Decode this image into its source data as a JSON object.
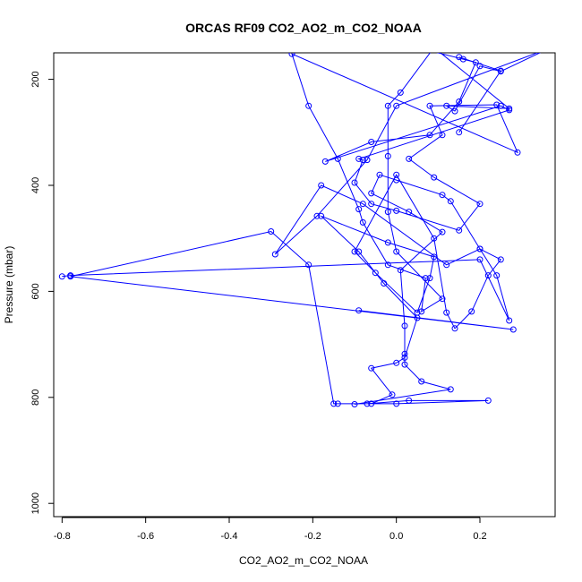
{
  "chart_data": {
    "type": "line",
    "title": "ORCAS RF09 CO2_AO2_m_CO2_NOAA",
    "xlabel": "CO2_AO2_m_CO2_NOAA",
    "ylabel": "Pressure (mbar)",
    "xlim": [
      -0.82,
      0.38
    ],
    "ylim": [
      1025,
      150
    ],
    "y_inverted": true,
    "grid": false,
    "legend": "none",
    "marker": "open-circle",
    "color": "#0000ff",
    "x_ticks": [
      "-0.8",
      "-0.6",
      "-0.4",
      "-0.2",
      "0.0",
      "0.2"
    ],
    "x_tick_values": [
      -0.8,
      -0.6,
      -0.4,
      -0.2,
      0.0,
      0.2
    ],
    "y_ticks": [
      "200",
      "400",
      "600",
      "800",
      "1000"
    ],
    "y_tick_values": [
      200,
      400,
      600,
      800,
      1000
    ],
    "series": [
      {
        "points": [
          [
            0.05,
            140
          ],
          [
            0.16,
            162
          ],
          [
            0.19,
            168
          ],
          [
            0.15,
            242
          ],
          [
            0.08,
            305
          ],
          [
            -0.06,
            318
          ],
          [
            -0.17,
            355
          ],
          [
            0.25,
            250
          ],
          [
            0.27,
            258
          ],
          [
            -0.09,
            350
          ],
          [
            -0.08,
            352
          ],
          [
            -0.1,
            395
          ],
          [
            -0.06,
            435
          ],
          [
            0.0,
            448
          ],
          [
            0.15,
            485
          ],
          [
            0.2,
            435
          ],
          [
            0.09,
            385
          ],
          [
            0.03,
            350
          ],
          [
            0.11,
            305
          ],
          [
            0.08,
            250
          ],
          [
            0.24,
            248
          ],
          [
            0.29,
            338
          ],
          [
            -0.25,
            152
          ],
          [
            -0.21,
            250
          ],
          [
            -0.14,
            350
          ],
          [
            -0.09,
            445
          ],
          [
            -0.08,
            470
          ],
          [
            -0.02,
            550
          ],
          [
            0.07,
            575
          ],
          [
            0.06,
            638
          ],
          [
            0.11,
            614
          ],
          [
            0.0,
            525
          ],
          [
            -0.02,
            450
          ],
          [
            -0.02,
            345
          ],
          [
            -0.02,
            250
          ],
          [
            0.01,
            225
          ],
          [
            0.09,
            140
          ],
          [
            0.27,
            255
          ],
          [
            0.12,
            250
          ],
          [
            0.14,
            260
          ],
          [
            0.2,
            175
          ],
          [
            0.25,
            185
          ],
          [
            0.37,
            140
          ],
          [
            0.0,
            250
          ],
          [
            -0.07,
            352
          ],
          [
            -0.19,
            458
          ],
          [
            -0.29,
            530
          ],
          [
            -0.18,
            400
          ],
          [
            -0.08,
            435
          ],
          [
            0.12,
            550
          ],
          [
            0.2,
            520
          ],
          [
            0.25,
            540
          ],
          [
            0.22,
            570
          ],
          [
            0.18,
            638
          ],
          [
            0.14,
            670
          ],
          [
            0.12,
            640
          ],
          [
            0.09,
            500
          ],
          [
            0.0,
            380
          ],
          [
            -0.1,
            525
          ],
          [
            -0.05,
            565
          ],
          [
            0.05,
            640
          ],
          [
            0.08,
            575
          ],
          [
            0.09,
            535
          ],
          [
            -0.02,
            508
          ],
          [
            -0.18,
            458
          ],
          [
            -0.09,
            525
          ],
          [
            -0.03,
            585
          ],
          [
            0.05,
            650
          ],
          [
            0.02,
            725
          ],
          [
            0.0,
            735
          ],
          [
            -0.06,
            745
          ],
          [
            -0.01,
            795
          ],
          [
            -0.06,
            812
          ],
          [
            0.0,
            812
          ],
          [
            0.22,
            806
          ],
          [
            0.03,
            806
          ],
          [
            -0.07,
            812
          ],
          [
            -0.14,
            812
          ],
          [
            -0.15,
            812
          ],
          [
            -0.21,
            550
          ],
          [
            -0.3,
            487
          ],
          [
            -0.78,
            572
          ],
          [
            0.28,
            672
          ],
          [
            -0.09,
            636
          ]
        ]
      },
      {
        "points": [
          [
            0.15,
            300
          ],
          [
            0.25,
            184
          ],
          [
            0.15,
            158
          ]
        ]
      },
      {
        "points": [
          [
            -0.8,
            572
          ],
          [
            -0.78,
            570
          ],
          [
            0.2,
            540
          ],
          [
            0.27,
            655
          ],
          [
            0.24,
            570
          ],
          [
            0.2,
            520
          ],
          [
            0.13,
            430
          ],
          [
            0.11,
            418
          ],
          [
            0.0,
            390
          ],
          [
            -0.04,
            380
          ],
          [
            -0.06,
            415
          ],
          [
            0.03,
            450
          ],
          [
            0.11,
            488
          ],
          [
            0.01,
            560
          ],
          [
            0.02,
            665
          ],
          [
            0.02,
            718
          ],
          [
            0.02,
            738
          ],
          [
            0.06,
            770
          ],
          [
            0.13,
            785
          ],
          [
            -0.1,
            813
          ]
        ]
      }
    ]
  }
}
